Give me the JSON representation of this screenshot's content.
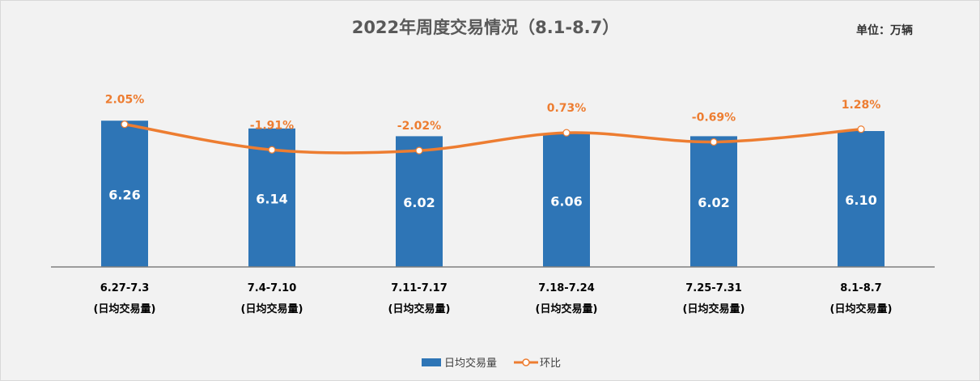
{
  "chart_data": {
    "type": "bar",
    "title": "2022年周度交易情况（8.1-8.7）",
    "unit_label": "单位：万辆",
    "categories": [
      "6.27-7.3",
      "7.4-7.10",
      "7.11-7.17",
      "7.18-7.24",
      "7.25-7.31",
      "8.1-8.7"
    ],
    "category_sublabel": "(日均交易量)",
    "series": [
      {
        "name": "日均交易量",
        "type": "bar",
        "color": "#2e75b6",
        "values": [
          6.26,
          6.14,
          6.02,
          6.06,
          6.02,
          6.1
        ],
        "labels": [
          "6.26",
          "6.14",
          "6.02",
          "6.06",
          "6.02",
          "6.10"
        ]
      },
      {
        "name": "环比",
        "type": "line",
        "smooth": true,
        "axis": "secondary",
        "color": "#ed7d31",
        "values": [
          2.05,
          -1.91,
          -2.02,
          0.73,
          -0.69,
          1.28
        ],
        "labels": [
          "2.05%",
          "-1.91%",
          "-2.02%",
          "0.73%",
          "-0.69%",
          "1.28%"
        ]
      }
    ],
    "ylim": [
      4,
      7
    ],
    "y2lim": [
      -20,
      10
    ],
    "axes_visible": false,
    "grid": false,
    "legend": "bottom"
  }
}
